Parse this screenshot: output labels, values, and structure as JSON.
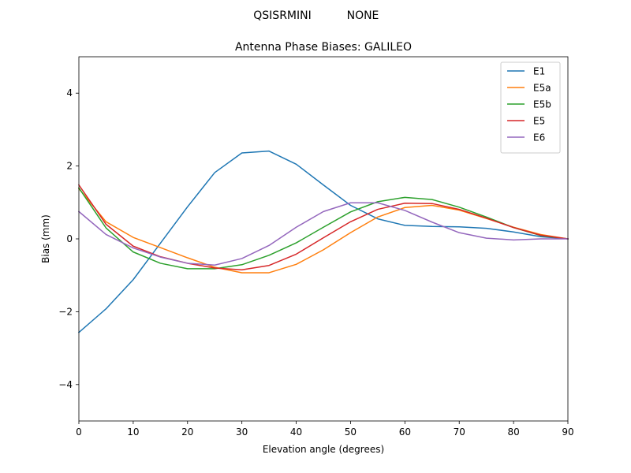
{
  "header": {
    "left": "QSISRMINI",
    "right": "NONE"
  },
  "chart_data": {
    "type": "line",
    "title": "Antenna Phase Biases: GALILEO",
    "xlabel": "Elevation angle (degrees)",
    "ylabel": "Bias (mm)",
    "xlim": [
      0,
      90
    ],
    "ylim": [
      -5,
      5
    ],
    "xticks": [
      0,
      10,
      20,
      30,
      40,
      50,
      60,
      70,
      80,
      90
    ],
    "yticks": [
      -4,
      -2,
      0,
      2,
      4
    ],
    "xtick_labels": [
      "0",
      "10",
      "20",
      "30",
      "40",
      "50",
      "60",
      "70",
      "80",
      "90"
    ],
    "ytick_labels": [
      "−4",
      "−2",
      "0",
      "2",
      "4"
    ],
    "grid": false,
    "legend_position": "top-right",
    "x": [
      0,
      5,
      10,
      15,
      20,
      25,
      30,
      35,
      40,
      45,
      50,
      55,
      60,
      65,
      70,
      75,
      80,
      85,
      90
    ],
    "series": [
      {
        "name": "E1",
        "color": "#1f77b4",
        "values": [
          -2.57,
          -1.92,
          -1.12,
          -0.12,
          0.88,
          1.82,
          2.36,
          2.41,
          2.05,
          1.48,
          0.92,
          0.55,
          0.37,
          0.34,
          0.33,
          0.29,
          0.19,
          0.06,
          0.0
        ]
      },
      {
        "name": "E5a",
        "color": "#ff7f0e",
        "values": [
          1.38,
          0.47,
          0.04,
          -0.24,
          -0.52,
          -0.78,
          -0.93,
          -0.93,
          -0.7,
          -0.3,
          0.17,
          0.6,
          0.86,
          0.92,
          0.79,
          0.56,
          0.32,
          0.12,
          0.0
        ]
      },
      {
        "name": "E5b",
        "color": "#2ca02c",
        "values": [
          1.4,
          0.3,
          -0.36,
          -0.67,
          -0.82,
          -0.82,
          -0.71,
          -0.45,
          -0.11,
          0.32,
          0.74,
          1.02,
          1.14,
          1.08,
          0.87,
          0.6,
          0.31,
          0.09,
          0.0
        ]
      },
      {
        "name": "E5",
        "color": "#d62728",
        "values": [
          1.48,
          0.4,
          -0.2,
          -0.49,
          -0.67,
          -0.8,
          -0.85,
          -0.73,
          -0.42,
          0.03,
          0.47,
          0.81,
          0.98,
          0.97,
          0.81,
          0.57,
          0.31,
          0.1,
          0.0
        ]
      },
      {
        "name": "E6",
        "color": "#9467bd",
        "values": [
          0.75,
          0.12,
          -0.25,
          -0.5,
          -0.67,
          -0.72,
          -0.54,
          -0.18,
          0.32,
          0.75,
          0.99,
          0.99,
          0.78,
          0.46,
          0.17,
          0.02,
          -0.03,
          0.0,
          0.0
        ]
      }
    ]
  }
}
